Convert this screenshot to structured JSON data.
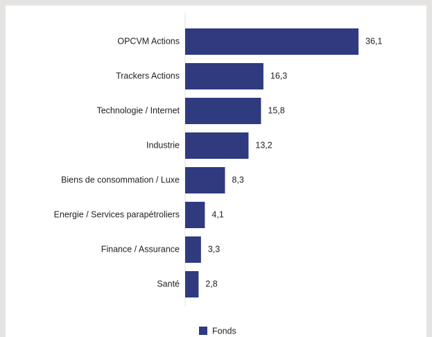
{
  "chart_data": {
    "type": "bar",
    "orientation": "horizontal",
    "categories": [
      "OPCVM Actions",
      "Trackers Actions",
      "Technologie / Internet",
      "Industrie",
      "Biens de consommation / Luxe",
      "Energie / Services parapétroliers",
      "Finance / Assurance",
      "Santé"
    ],
    "series": [
      {
        "name": "Fonds",
        "color": "#2f3a7f",
        "values": [
          36.1,
          16.3,
          15.8,
          13.2,
          8.3,
          4.1,
          3.3,
          2.8
        ],
        "value_labels": [
          "36,1",
          "16,3",
          "15,8",
          "13,2",
          "8,3",
          "4,1",
          "3,3",
          "2,8"
        ]
      }
    ]
  }
}
